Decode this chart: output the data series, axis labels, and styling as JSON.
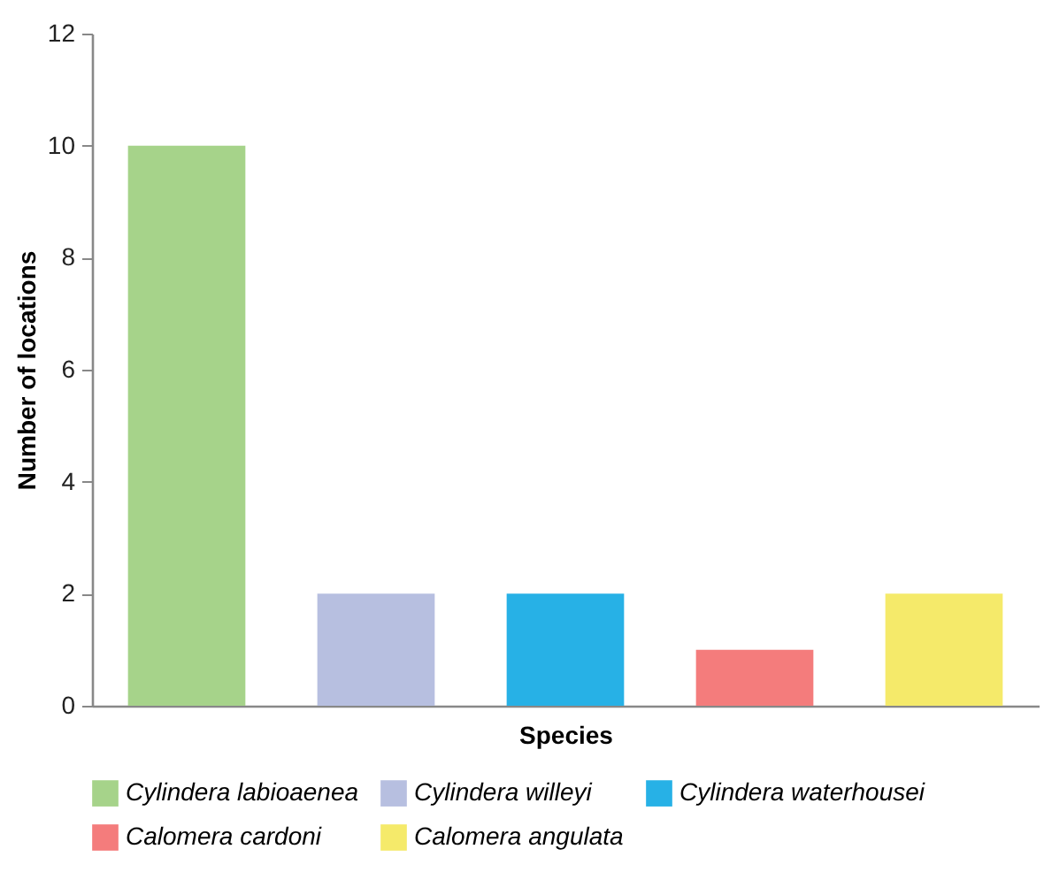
{
  "chart_data": {
    "type": "bar",
    "xlabel": "Species",
    "ylabel": "Number of locations",
    "categories": [
      null,
      null,
      null,
      null,
      null
    ],
    "series": [
      {
        "name": "Cylindera labioaenea",
        "color": "#a6d38a",
        "values": [
          10,
          null,
          null,
          null,
          null
        ]
      },
      {
        "name": "Cylindera willeyi",
        "color": "#b7bfe0",
        "values": [
          null,
          2,
          null,
          null,
          null
        ]
      },
      {
        "name": "Cylindera waterhousei",
        "color": "#27b1e6",
        "values": [
          null,
          null,
          2,
          null,
          null
        ]
      },
      {
        "name": "Calomera cardoni",
        "color": "#f47c7c",
        "values": [
          null,
          null,
          null,
          1,
          null
        ]
      },
      {
        "name": "Calomera angulata",
        "color": "#f5ea6a",
        "values": [
          null,
          null,
          null,
          null,
          2
        ]
      }
    ],
    "ylim": [
      0,
      12
    ],
    "yticks": [
      0,
      2,
      4,
      6,
      8,
      10,
      12
    ],
    "grid": false,
    "legend": "bottom",
    "tick_labels": "y"
  }
}
